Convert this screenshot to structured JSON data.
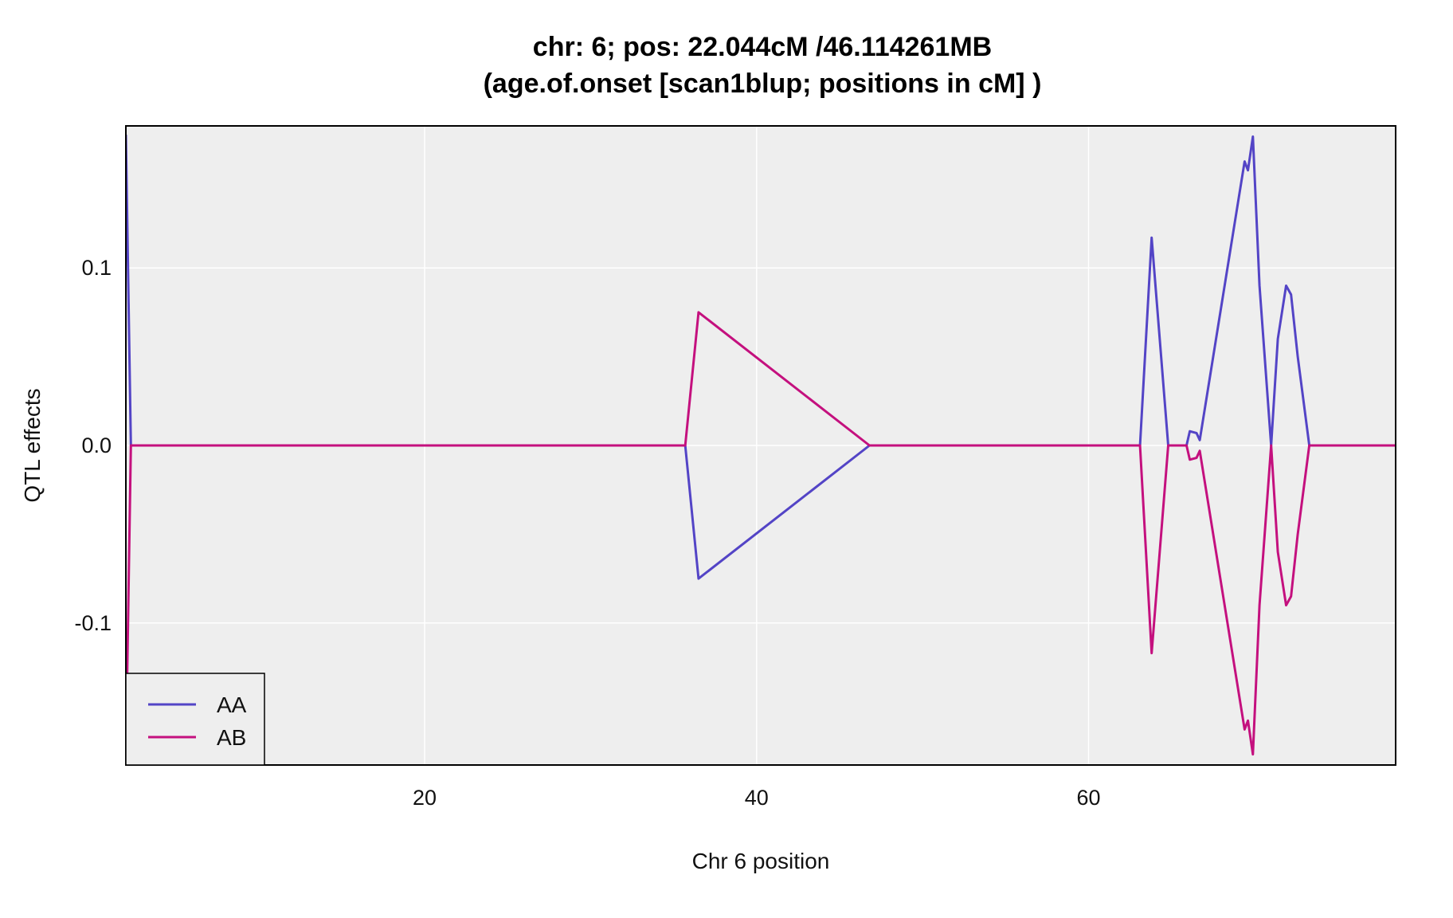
{
  "chart_data": {
    "type": "line",
    "title": "chr: 6; pos: 22.044cM /46.114261MB",
    "subtitle": "(age.of.onset [scan1blup; positions in cM] )",
    "xlabel": "Chr 6 position",
    "ylabel": "QTL effects",
    "xlim": [
      2,
      78.5
    ],
    "ylim": [
      -0.18,
      0.18
    ],
    "x_ticks": [
      20,
      40,
      60
    ],
    "x_tick_labels": [
      "20",
      "40",
      "60"
    ],
    "y_ticks": [
      -0.1,
      0.0,
      0.1
    ],
    "y_tick_labels": [
      "-0.1",
      "0.0",
      "0.1"
    ],
    "grid": true,
    "background": "#eeeeee",
    "legend_position": "bottom-left",
    "series": [
      {
        "name": "AA",
        "color": "#5344c6",
        "x": [
          2.0,
          2.3,
          35.7,
          36.5,
          46.8,
          63.1,
          63.8,
          64.8,
          65.9,
          66.1,
          66.5,
          66.7,
          69.4,
          69.6,
          69.9,
          70.3,
          71.0,
          71.4,
          71.9,
          72.2,
          72.6,
          73.3,
          78.5
        ],
        "y": [
          0.175,
          0.0,
          0.0,
          -0.075,
          0.0,
          0.0,
          0.117,
          0.0,
          0.0,
          0.008,
          0.007,
          0.003,
          0.16,
          0.155,
          0.174,
          0.09,
          0.0,
          0.06,
          0.09,
          0.085,
          0.05,
          0.0,
          0.0
        ]
      },
      {
        "name": "AB",
        "color": "#c4107e",
        "x": [
          2.0,
          2.3,
          35.7,
          36.5,
          46.8,
          63.1,
          63.8,
          64.8,
          65.9,
          66.1,
          66.5,
          66.7,
          69.4,
          69.6,
          69.9,
          70.3,
          71.0,
          71.4,
          71.9,
          72.2,
          72.6,
          73.3,
          78.5
        ],
        "y": [
          -0.175,
          0.0,
          0.0,
          0.075,
          0.0,
          0.0,
          -0.117,
          0.0,
          0.0,
          -0.008,
          -0.007,
          -0.003,
          -0.16,
          -0.155,
          -0.174,
          -0.09,
          0.0,
          -0.06,
          -0.09,
          -0.085,
          -0.05,
          0.0,
          0.0
        ]
      }
    ]
  }
}
